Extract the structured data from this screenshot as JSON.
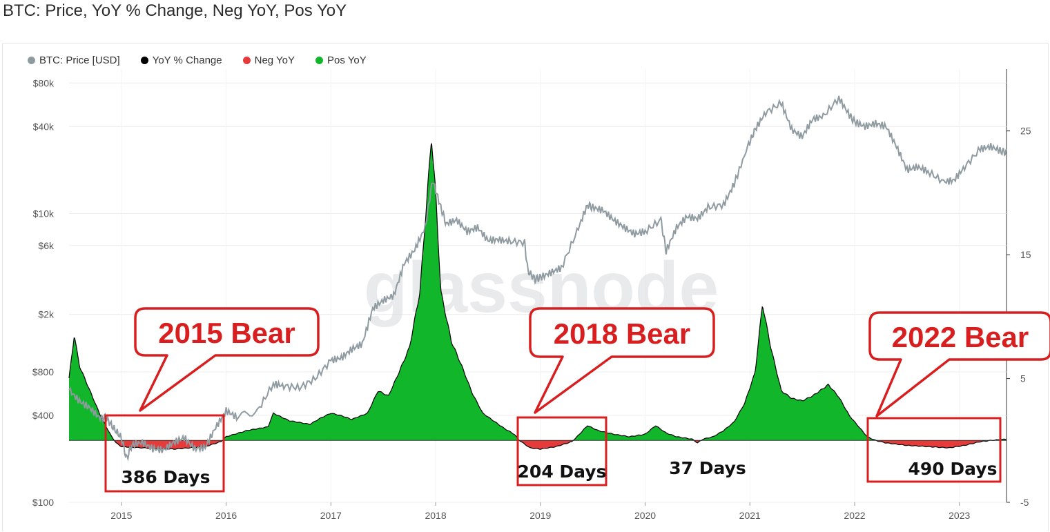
{
  "page": {
    "title": "BTC: Price, YoY % Change, Neg YoY, Pos YoY"
  },
  "legend": [
    {
      "label": "BTC: Price [USD]",
      "color": "#8f9ba1"
    },
    {
      "label": "YoY % Change",
      "color": "#000000"
    },
    {
      "label": "Neg YoY",
      "color": "#e63b3b"
    },
    {
      "label": "Pos YoY",
      "color": "#12b62a"
    }
  ],
  "watermark": "glassnode",
  "chart_data": {
    "type": "area",
    "x_axis": {
      "ticks": [
        "2015",
        "2016",
        "2017",
        "2018",
        "2019",
        "2020",
        "2021",
        "2022",
        "2023"
      ],
      "range": [
        2014.5,
        2023.45
      ]
    },
    "y_left": {
      "scale": "log",
      "range": [
        100,
        100000
      ],
      "ticks": [
        {
          "label": "$80k",
          "value": 80000
        },
        {
          "label": "$40k",
          "value": 40000
        },
        {
          "label": "$10k",
          "value": 10000
        },
        {
          "label": "$6k",
          "value": 6000
        },
        {
          "label": "$2k",
          "value": 2000
        },
        {
          "label": "$800",
          "value": 800
        },
        {
          "label": "$400",
          "value": 400
        },
        {
          "label": "$100",
          "value": 100
        }
      ]
    },
    "y_right": {
      "scale": "linear",
      "range": [
        -5,
        30
      ],
      "ticks": [
        25,
        15,
        5,
        -5
      ]
    },
    "series": [
      {
        "name": "BTC: Price [USD]",
        "color": "#8f9ba1",
        "points": [
          [
            2014.5,
            600
          ],
          [
            2014.6,
            500
          ],
          [
            2014.7,
            450
          ],
          [
            2014.8,
            380
          ],
          [
            2014.85,
            390
          ],
          [
            2014.92,
            330
          ],
          [
            2015.0,
            280
          ],
          [
            2015.05,
            200
          ],
          [
            2015.1,
            250
          ],
          [
            2015.2,
            260
          ],
          [
            2015.3,
            235
          ],
          [
            2015.4,
            230
          ],
          [
            2015.5,
            260
          ],
          [
            2015.6,
            280
          ],
          [
            2015.7,
            235
          ],
          [
            2015.8,
            240
          ],
          [
            2015.9,
            330
          ],
          [
            2016.0,
            430
          ],
          [
            2016.1,
            390
          ],
          [
            2016.3,
            430
          ],
          [
            2016.45,
            660
          ],
          [
            2016.55,
            640
          ],
          [
            2016.7,
            620
          ],
          [
            2016.85,
            720
          ],
          [
            2017.0,
            960
          ],
          [
            2017.1,
            1000
          ],
          [
            2017.2,
            1150
          ],
          [
            2017.3,
            1250
          ],
          [
            2017.4,
            2200
          ],
          [
            2017.5,
            2500
          ],
          [
            2017.6,
            2700
          ],
          [
            2017.7,
            4500
          ],
          [
            2017.8,
            5600
          ],
          [
            2017.9,
            8000
          ],
          [
            2017.97,
            17000
          ],
          [
            2018.05,
            11000
          ],
          [
            2018.1,
            8500
          ],
          [
            2018.2,
            9000
          ],
          [
            2018.3,
            7500
          ],
          [
            2018.4,
            8000
          ],
          [
            2018.5,
            6500
          ],
          [
            2018.6,
            6600
          ],
          [
            2018.7,
            6400
          ],
          [
            2018.85,
            6300
          ],
          [
            2018.88,
            4000
          ],
          [
            2018.95,
            3500
          ],
          [
            2019.0,
            3600
          ],
          [
            2019.1,
            3900
          ],
          [
            2019.2,
            4200
          ],
          [
            2019.35,
            7500
          ],
          [
            2019.45,
            11500
          ],
          [
            2019.5,
            11000
          ],
          [
            2019.6,
            10500
          ],
          [
            2019.7,
            9000
          ],
          [
            2019.8,
            8000
          ],
          [
            2019.9,
            7200
          ],
          [
            2020.0,
            7500
          ],
          [
            2020.15,
            9000
          ],
          [
            2020.2,
            5500
          ],
          [
            2020.3,
            8000
          ],
          [
            2020.4,
            9500
          ],
          [
            2020.5,
            9200
          ],
          [
            2020.6,
            11000
          ],
          [
            2020.75,
            11500
          ],
          [
            2020.85,
            16000
          ],
          [
            2020.98,
            29000
          ],
          [
            2021.05,
            38000
          ],
          [
            2021.15,
            50000
          ],
          [
            2021.3,
            58000
          ],
          [
            2021.4,
            38000
          ],
          [
            2021.5,
            34000
          ],
          [
            2021.6,
            45000
          ],
          [
            2021.7,
            47000
          ],
          [
            2021.85,
            63000
          ],
          [
            2021.95,
            48000
          ],
          [
            2022.0,
            43000
          ],
          [
            2022.1,
            40000
          ],
          [
            2022.2,
            42000
          ],
          [
            2022.3,
            40000
          ],
          [
            2022.4,
            29000
          ],
          [
            2022.5,
            20000
          ],
          [
            2022.6,
            21000
          ],
          [
            2022.7,
            19500
          ],
          [
            2022.85,
            16500
          ],
          [
            2022.95,
            17000
          ],
          [
            2023.05,
            21000
          ],
          [
            2023.2,
            28000
          ],
          [
            2023.3,
            29000
          ],
          [
            2023.4,
            27000
          ],
          [
            2023.45,
            26500
          ]
        ]
      },
      {
        "name": "YoY % Change",
        "color": "#000000",
        "points": [
          [
            2014.5,
            5
          ],
          [
            2014.55,
            8.5
          ],
          [
            2014.6,
            6
          ],
          [
            2014.65,
            5
          ],
          [
            2014.7,
            4
          ],
          [
            2014.75,
            3
          ],
          [
            2014.8,
            2
          ],
          [
            2014.85,
            1.2
          ],
          [
            2014.9,
            0.4
          ],
          [
            2014.95,
            -0.2
          ],
          [
            2015.0,
            -0.5
          ],
          [
            2015.2,
            -0.6
          ],
          [
            2015.5,
            -0.7
          ],
          [
            2015.8,
            -0.5
          ],
          [
            2015.95,
            -0.1
          ],
          [
            2016.0,
            0.3
          ],
          [
            2016.2,
            0.8
          ],
          [
            2016.4,
            1.1
          ],
          [
            2016.45,
            2.2
          ],
          [
            2016.6,
            1.6
          ],
          [
            2016.8,
            1.3
          ],
          [
            2016.9,
            1.8
          ],
          [
            2017.0,
            2.2
          ],
          [
            2017.1,
            2.0
          ],
          [
            2017.2,
            1.7
          ],
          [
            2017.35,
            2.2
          ],
          [
            2017.45,
            4.0
          ],
          [
            2017.55,
            3.6
          ],
          [
            2017.65,
            5.5
          ],
          [
            2017.75,
            7.5
          ],
          [
            2017.85,
            12
          ],
          [
            2017.93,
            21
          ],
          [
            2017.96,
            24.5
          ],
          [
            2018.0,
            20
          ],
          [
            2018.05,
            12
          ],
          [
            2018.15,
            8
          ],
          [
            2018.25,
            6
          ],
          [
            2018.35,
            3.8
          ],
          [
            2018.45,
            2.2
          ],
          [
            2018.55,
            1.6
          ],
          [
            2018.65,
            1.0
          ],
          [
            2018.75,
            0.5
          ],
          [
            2018.8,
            0
          ],
          [
            2018.9,
            -0.6
          ],
          [
            2019.0,
            -0.7
          ],
          [
            2019.15,
            -0.5
          ],
          [
            2019.3,
            -0.1
          ],
          [
            2019.35,
            0.3
          ],
          [
            2019.45,
            1.2
          ],
          [
            2019.55,
            0.8
          ],
          [
            2019.7,
            0.5
          ],
          [
            2019.85,
            0.3
          ],
          [
            2020.0,
            0.5
          ],
          [
            2020.1,
            1.2
          ],
          [
            2020.2,
            0.6
          ],
          [
            2020.3,
            0.3
          ],
          [
            2020.45,
            0.1
          ],
          [
            2020.5,
            -0.2
          ],
          [
            2020.55,
            0.1
          ],
          [
            2020.65,
            0.3
          ],
          [
            2020.75,
            0.8
          ],
          [
            2020.85,
            1.5
          ],
          [
            2020.95,
            3.0
          ],
          [
            2021.05,
            5.5
          ],
          [
            2021.12,
            11.0
          ],
          [
            2021.2,
            7.5
          ],
          [
            2021.3,
            4.0
          ],
          [
            2021.4,
            3.4
          ],
          [
            2021.5,
            3.2
          ],
          [
            2021.6,
            3.6
          ],
          [
            2021.75,
            4.5
          ],
          [
            2021.85,
            3.5
          ],
          [
            2021.95,
            2.0
          ],
          [
            2022.05,
            1.0
          ],
          [
            2022.12,
            0.3
          ],
          [
            2022.2,
            0
          ],
          [
            2022.3,
            -0.2
          ],
          [
            2022.5,
            -0.4
          ],
          [
            2022.7,
            -0.5
          ],
          [
            2022.9,
            -0.6
          ],
          [
            2023.05,
            -0.4
          ],
          [
            2023.2,
            -0.1
          ],
          [
            2023.3,
            0
          ],
          [
            2023.45,
            0.1
          ]
        ]
      },
      {
        "name": "Neg YoY",
        "color": "#e63b3b"
      },
      {
        "name": "Pos YoY",
        "color": "#12b62a"
      }
    ],
    "annotations": [
      {
        "label": "2015 Bear",
        "days": "386 Days",
        "x_start": 2014.85,
        "x_end": 2015.95
      },
      {
        "label": "2018 Bear",
        "days": "204 Days",
        "x_start": 2018.75,
        "x_end": 2019.55
      },
      {
        "label": "",
        "days": "37 Days",
        "x_start": 2020.35,
        "x_end": 2020.55
      },
      {
        "label": "2022 Bear",
        "days": "490 Days",
        "x_start": 2022.12,
        "x_end": 2023.45
      }
    ]
  }
}
